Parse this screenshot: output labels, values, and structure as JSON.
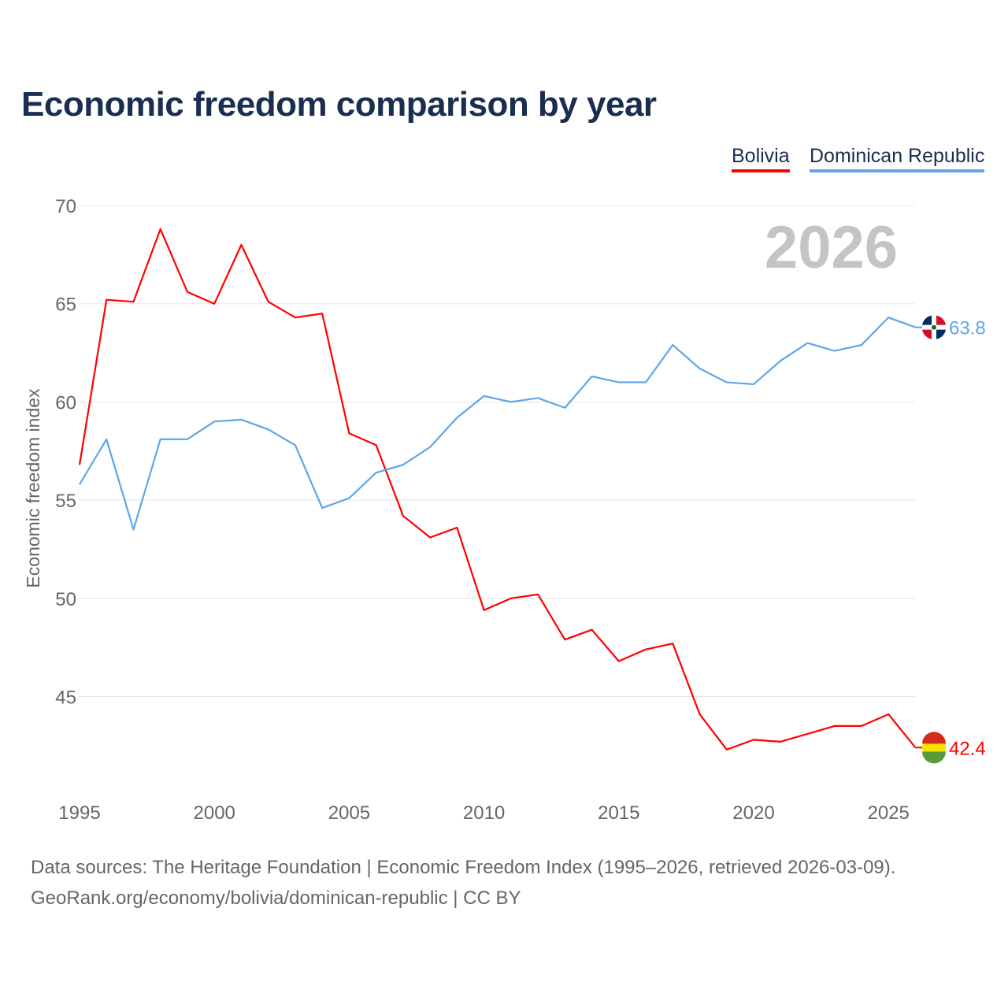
{
  "chart_data": {
    "type": "line",
    "title": "Economic freedom comparison by year",
    "ylabel": "Economic freedom index",
    "xlabel": "",
    "ylim": [
      41,
      70
    ],
    "yticks": [
      45,
      50,
      55,
      60,
      65,
      70
    ],
    "xticks": [
      1995,
      2000,
      2005,
      2010,
      2015,
      2020,
      2025
    ],
    "x": [
      1995,
      1996,
      1997,
      1998,
      1999,
      2000,
      2001,
      2002,
      2003,
      2004,
      2005,
      2006,
      2007,
      2008,
      2009,
      2010,
      2011,
      2012,
      2013,
      2014,
      2015,
      2016,
      2017,
      2018,
      2019,
      2020,
      2021,
      2022,
      2023,
      2024,
      2025,
      2026
    ],
    "year_watermark": "2026",
    "grid": true,
    "legend_position": "top-right",
    "series": [
      {
        "name": "Bolivia",
        "color": "#ff0000",
        "end_label": "42.4",
        "flag": "bolivia-flag",
        "values": [
          56.8,
          65.2,
          65.1,
          68.8,
          65.6,
          65.0,
          68.0,
          65.1,
          64.3,
          64.5,
          58.4,
          57.8,
          54.2,
          53.1,
          53.6,
          49.4,
          50.0,
          50.2,
          47.9,
          48.4,
          46.8,
          47.4,
          47.7,
          44.1,
          42.3,
          42.8,
          42.7,
          43.1,
          43.5,
          43.5,
          44.1,
          42.4
        ]
      },
      {
        "name": "Dominican Republic",
        "color": "#5ea6e8",
        "end_label": "63.8",
        "flag": "dominican-republic-flag",
        "values": [
          55.8,
          58.1,
          53.5,
          58.1,
          58.1,
          59.0,
          59.1,
          58.6,
          57.8,
          54.6,
          55.1,
          56.4,
          56.8,
          57.7,
          59.2,
          60.3,
          60.0,
          60.2,
          59.7,
          61.3,
          61.0,
          61.0,
          62.9,
          61.7,
          61.0,
          60.9,
          62.1,
          63.0,
          62.6,
          62.9,
          64.3,
          63.8
        ]
      }
    ]
  },
  "footer": {
    "line1": "Data sources: The Heritage Foundation | Economic Freedom Index (1995–2026, retrieved 2026-03-09).",
    "line2": "GeoRank.org/economy/bolivia/dominican-republic | CC BY"
  }
}
